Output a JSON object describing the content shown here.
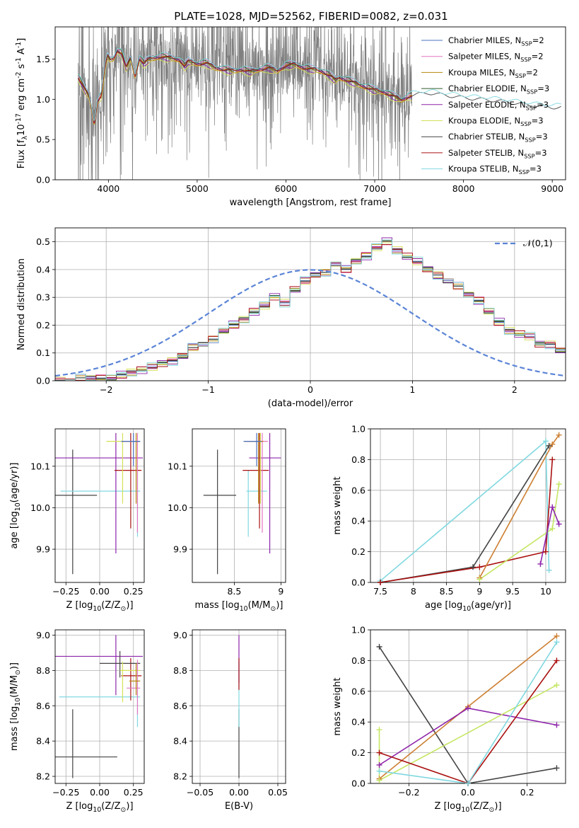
{
  "colors": {
    "Chabrier MILES": "#4a6fbf",
    "Salpeter MILES": "#e377c2",
    "Kroupa MILES": "#b8860b",
    "Chabrier ELODIE": "#2e5e2e",
    "Salpeter ELODIE": "#8e24aa",
    "Kroupa ELODIE": "#d4e157",
    "Chabrier STELIB": "#444444",
    "Salpeter STELIB": "#aa1111",
    "Kroupa STELIB": "#80d8e0",
    "data": "#7f7f7f",
    "normal": "#5b84d6",
    "peru": "#cd7f32",
    "lime": "#c5e663",
    "grid": "#b0b0b0"
  },
  "chart_data": [
    {
      "id": "spectrum",
      "type": "line",
      "title": "PLATE=1028, MJD=52562, FIBERID=0082, z=0.031",
      "xlabel": "wavelength [Angstrom, rest frame]",
      "ylabel": "Flux [f$_\\lambda$10$^{-17}$ erg cm$^{-2}$ s$^{-1}$ A$^{-1}$]",
      "xlim": [
        3400,
        9150
      ],
      "ylim": [
        0,
        1.9
      ],
      "xticks": [
        4000,
        5000,
        6000,
        7000,
        8000,
        9000
      ],
      "yticks": [
        0.0,
        0.5,
        1.0,
        1.5
      ],
      "grid": false,
      "legend_position": "top-right",
      "legend": [
        {
          "label": "Chabrier MILES, N$_{SSP}$=2",
          "color_key": "Chabrier MILES"
        },
        {
          "label": "Salpeter MILES, N$_{SSP}$=2",
          "color_key": "Salpeter MILES"
        },
        {
          "label": "Kroupa MILES, N$_{SSP}$=2",
          "color_key": "Kroupa MILES"
        },
        {
          "label": "Chabrier ELODIE, N$_{SSP}$=3",
          "color_key": "Chabrier ELODIE"
        },
        {
          "label": "Salpeter ELODIE, N$_{SSP}$=3",
          "color_key": "Salpeter ELODIE"
        },
        {
          "label": "Kroupa ELODIE, N$_{SSP}$=3",
          "color_key": "Kroupa ELODIE"
        },
        {
          "label": "Chabrier STELIB, N$_{SSP}$=3",
          "color_key": "Chabrier STELIB"
        },
        {
          "label": "Salpeter STELIB, N$_{SSP}$=3",
          "color_key": "Salpeter STELIB"
        },
        {
          "label": "Kroupa STELIB, N$_{SSP}$=3",
          "color_key": "Kroupa STELIB"
        }
      ],
      "model_continuum": {
        "x": [
          3660,
          3700,
          3740,
          3780,
          3810,
          3840,
          3880,
          3920,
          3960,
          3990,
          4020,
          4060,
          4100,
          4150,
          4200,
          4250,
          4300,
          4350,
          4400,
          4450,
          4500,
          4600,
          4700,
          4800,
          4860,
          4900,
          5000,
          5100,
          5200,
          5300,
          5400,
          5500,
          5600,
          5700,
          5800,
          5900,
          6000,
          6100,
          6200,
          6300,
          6400,
          6500,
          6560,
          6600,
          6700,
          6800,
          6900,
          7000,
          7100,
          7200,
          7300,
          7400,
          7600,
          7800,
          8000,
          8200,
          8400,
          8600,
          8800,
          9000,
          9150
        ],
        "y": [
          1.28,
          1.2,
          1.12,
          1.05,
          0.9,
          0.7,
          1.0,
          1.05,
          1.4,
          1.55,
          1.5,
          1.52,
          1.62,
          1.58,
          1.4,
          1.52,
          1.3,
          1.52,
          1.45,
          1.5,
          1.52,
          1.54,
          1.52,
          1.5,
          1.42,
          1.48,
          1.45,
          1.46,
          1.4,
          1.38,
          1.36,
          1.38,
          1.35,
          1.38,
          1.4,
          1.36,
          1.43,
          1.44,
          1.4,
          1.38,
          1.36,
          1.3,
          1.24,
          1.28,
          1.24,
          1.2,
          1.16,
          1.12,
          1.1,
          1.05,
          1.0,
          1.05,
          1.08,
          1.05,
          1.02,
          1.0,
          0.98,
          0.95,
          0.92,
          0.9,
          0.9
        ]
      },
      "data_range": [
        3660,
        7420
      ],
      "model_offsets": [
        0.0,
        0.02,
        -0.02,
        0.01,
        -0.03,
        -0.05,
        0.0,
        -0.01,
        0.03
      ],
      "model_ranges": [
        [
          3660,
          7420
        ],
        [
          3660,
          7420
        ],
        [
          3660,
          7420
        ],
        [
          3660,
          7420
        ],
        [
          3660,
          7420
        ],
        [
          3660,
          7420
        ],
        [
          3660,
          9100
        ],
        [
          3660,
          7420
        ],
        [
          3660,
          9100
        ]
      ]
    },
    {
      "id": "residuals",
      "type": "line",
      "xlabel": "(data-model)/error",
      "ylabel": "Normed distribution",
      "xlim": [
        -2.5,
        2.5
      ],
      "ylim": [
        0,
        0.55
      ],
      "xticks": [
        -2,
        -1,
        0,
        1,
        2
      ],
      "yticks": [
        0.0,
        0.1,
        0.2,
        0.3,
        0.4,
        0.5
      ],
      "grid": true,
      "legend_position": "top-right",
      "legend": [
        {
          "label": "$\\mathcal{N}(0,1)$",
          "style": "dashed"
        }
      ],
      "bin_width": 0.1,
      "bin_start": -2.5,
      "base_values": [
        0.0,
        0.0,
        0.01,
        0.01,
        0.01,
        0.01,
        0.02,
        0.03,
        0.04,
        0.05,
        0.06,
        0.07,
        0.09,
        0.12,
        0.13,
        0.15,
        0.18,
        0.2,
        0.22,
        0.25,
        0.27,
        0.3,
        0.28,
        0.33,
        0.36,
        0.38,
        0.39,
        0.42,
        0.4,
        0.43,
        0.45,
        0.48,
        0.5,
        0.47,
        0.45,
        0.43,
        0.4,
        0.38,
        0.36,
        0.34,
        0.31,
        0.29,
        0.25,
        0.21,
        0.18,
        0.17,
        0.16,
        0.13,
        0.13,
        0.11,
        0.12,
        0.1,
        0.08,
        0.09,
        0.08,
        0.06,
        0.05,
        0.05,
        0.04,
        0.03
      ],
      "series_jitter": [
        0.0,
        0.012,
        -0.01,
        0.008,
        0.015,
        -0.013,
        -0.006,
        0.01,
        -0.015
      ]
    },
    {
      "id": "z-age",
      "type": "scatter",
      "xlabel": "Z [log$_{10}$(Z/Z$_\\odot$)]",
      "ylabel": "age  [log$_{10}$(age/yr)]",
      "xlim": [
        -0.33,
        0.33
      ],
      "ylim": [
        9.82,
        10.19
      ],
      "xticks": [
        -0.25,
        0.0,
        0.25
      ],
      "xticklabels": [
        "−0.25",
        "0.00",
        "0.25"
      ],
      "yticks": [
        9.9,
        10.0,
        10.1
      ],
      "grid": true,
      "points": [
        {
          "color_key": "Chabrier STELIB",
          "x": -0.2,
          "xerr": [
            0.27,
            0.18
          ],
          "y": 10.03,
          "yerr": [
            0.19,
            0.11
          ]
        },
        {
          "color_key": "Kroupa STELIB",
          "x": 0.28,
          "xerr": [
            0.57,
            0.02
          ],
          "y": 10.04,
          "yerr": [
            0.11,
            0.05
          ]
        },
        {
          "color_key": "Salpeter ELODIE",
          "x": 0.12,
          "xerr": [
            0.45,
            0.2
          ],
          "y": 10.12,
          "yerr": [
            0.23,
            0.06
          ]
        },
        {
          "color_key": "Salpeter STELIB",
          "x": 0.23,
          "xerr": [
            0.12,
            0.08
          ],
          "y": 10.09,
          "yerr": [
            0.14,
            0.09
          ]
        },
        {
          "color_key": "Kroupa ELODIE",
          "x": 0.17,
          "xerr": [
            0.12,
            0.12
          ],
          "y": 10.16,
          "yerr": [
            0.15,
            0.02
          ]
        },
        {
          "color_key": "Salpeter MILES",
          "x": 0.28,
          "xerr": [
            0.12,
            0.02
          ],
          "y": 10.16,
          "yerr": [
            0.22,
            0.02
          ]
        },
        {
          "color_key": "Kroupa MILES",
          "x": 0.27,
          "xerr": [
            0.1,
            0.03
          ],
          "y": 10.16,
          "yerr": [
            0.15,
            0.02
          ]
        },
        {
          "color_key": "Chabrier MILES",
          "x": 0.25,
          "xerr": [
            0.09,
            0.05
          ],
          "y": 10.16,
          "yerr": [
            0.06,
            0.02
          ]
        }
      ]
    },
    {
      "id": "mass-age",
      "type": "scatter",
      "xlabel": "mass [log$_{10}$(M/M$_\\odot$)]",
      "xlim": [
        8.05,
        9.05
      ],
      "ylim": [
        9.82,
        10.19
      ],
      "xticks": [
        8.5,
        9.0
      ],
      "yticks": [
        9.9,
        10.0,
        10.1
      ],
      "grid": true,
      "points": [
        {
          "color_key": "Chabrier STELIB",
          "x": 8.32,
          "xerr": [
            0.15,
            0.2
          ],
          "y": 10.03,
          "yerr": [
            0.19,
            0.11
          ]
        },
        {
          "color_key": "Kroupa STELIB",
          "x": 8.65,
          "xerr": [
            0.02,
            0.2
          ],
          "y": 10.04,
          "yerr": [
            0.11,
            0.05
          ]
        },
        {
          "color_key": "Salpeter ELODIE",
          "x": 8.88,
          "xerr": [
            0.22,
            0.12
          ],
          "y": 10.12,
          "yerr": [
            0.23,
            0.06
          ]
        },
        {
          "color_key": "Salpeter STELIB",
          "x": 8.77,
          "xerr": [
            0.18,
            0.1
          ],
          "y": 10.09,
          "yerr": [
            0.14,
            0.09
          ]
        },
        {
          "color_key": "Kroupa ELODIE",
          "x": 8.78,
          "xerr": [
            0.18,
            0.04
          ],
          "y": 10.16,
          "yerr": [
            0.15,
            0.02
          ]
        },
        {
          "color_key": "Salpeter MILES",
          "x": 8.8,
          "xerr": [
            0.17,
            0.06
          ],
          "y": 10.16,
          "yerr": [
            0.22,
            0.02
          ]
        },
        {
          "color_key": "Kroupa MILES",
          "x": 8.76,
          "xerr": [
            0.15,
            0.05
          ],
          "y": 10.16,
          "yerr": [
            0.15,
            0.02
          ]
        },
        {
          "color_key": "Chabrier MILES",
          "x": 8.74,
          "xerr": [
            0.14,
            0.05
          ],
          "y": 10.16,
          "yerr": [
            0.06,
            0.02
          ]
        }
      ]
    },
    {
      "id": "age-weight",
      "type": "line",
      "xlabel": "age  [log$_{10}$(age/yr)]",
      "ylabel": "mass weight",
      "xlim": [
        7.35,
        10.3
      ],
      "ylim": [
        0,
        1.0
      ],
      "xticks": [
        7.5,
        8.0,
        8.5,
        9.0,
        9.5,
        10.0
      ],
      "yticks": [
        0.0,
        0.2,
        0.4,
        0.6,
        0.8,
        1.0
      ],
      "grid": true,
      "series": [
        {
          "color_key": "Kroupa STELIB",
          "x": [
            7.5,
            10.0,
            10.05
          ],
          "y": [
            0.01,
            0.92,
            0.08
          ]
        },
        {
          "color_key": "Chabrier STELIB",
          "x": [
            7.5,
            8.9,
            10.05
          ],
          "y": [
            0.0,
            0.1,
            0.89
          ]
        },
        {
          "color_key": "Salpeter STELIB",
          "x": [
            7.5,
            9.0,
            10.0,
            10.1
          ],
          "y": [
            0.0,
            0.1,
            0.2,
            0.8
          ]
        },
        {
          "color_key": "peru",
          "x": [
            9.0,
            10.1,
            10.2
          ],
          "y": [
            0.03,
            0.9,
            0.96
          ]
        },
        {
          "color_key": "lime",
          "x": [
            9.0,
            10.1,
            10.2
          ],
          "y": [
            0.02,
            0.35,
            0.64
          ]
        },
        {
          "color_key": "Salpeter ELODIE",
          "x": [
            9.92,
            10.1,
            10.2
          ],
          "y": [
            0.12,
            0.49,
            0.38
          ]
        }
      ]
    },
    {
      "id": "z-mass",
      "type": "scatter",
      "xlabel": "Z [log$_{10}$(Z/Z$_\\odot$)]",
      "ylabel": "mass [log$_{10}$(M/M$_\\odot$)]",
      "xlim": [
        -0.33,
        0.33
      ],
      "ylim": [
        8.16,
        9.03
      ],
      "xticks": [
        -0.25,
        0.0,
        0.25
      ],
      "xticklabels": [
        "−0.25",
        "0.00",
        "0.25"
      ],
      "yticks": [
        8.2,
        8.4,
        8.6,
        8.8,
        9.0
      ],
      "grid": true,
      "points": [
        {
          "color_key": "Chabrier STELIB",
          "x": -0.2,
          "xerr": [
            0.27,
            0.33
          ],
          "y": 8.31,
          "yerr": [
            0.12,
            0.27
          ]
        },
        {
          "color_key": "Kroupa STELIB",
          "x": 0.28,
          "xerr": [
            0.58,
            0.02
          ],
          "y": 8.65,
          "yerr": [
            0.17,
            0.2
          ]
        },
        {
          "color_key": "Salpeter ELODIE",
          "x": 0.12,
          "xerr": [
            0.45,
            0.2
          ],
          "y": 8.88,
          "yerr": [
            0.22,
            0.12
          ]
        },
        {
          "color_key": "Salpeter STELIB",
          "x": 0.23,
          "xerr": [
            0.07,
            0.08
          ],
          "y": 8.77,
          "yerr": [
            0.14,
            0.1
          ]
        },
        {
          "color_key": "Chabrier STELIB",
          "x": 0.15,
          "xerr": [
            0.15,
            0.15
          ],
          "y": 8.84,
          "yerr": [
            0.08,
            0.07
          ]
        },
        {
          "color_key": "Kroupa ELODIE",
          "x": 0.17,
          "xerr": [
            0.02,
            0.13
          ],
          "y": 8.8,
          "yerr": [
            0.18,
            0.05
          ]
        },
        {
          "color_key": "Salpeter MILES",
          "x": 0.28,
          "xerr": [
            0.08,
            0.02
          ],
          "y": 8.7,
          "yerr": [
            0.15,
            0.16
          ]
        },
        {
          "color_key": "Kroupa MILES",
          "x": 0.27,
          "xerr": [
            0.05,
            0.03
          ],
          "y": 8.74,
          "yerr": [
            0.08,
            0.1
          ]
        }
      ]
    },
    {
      "id": "ebv-mass",
      "type": "scatter",
      "xlabel": "E(B-V)",
      "xlim": [
        -0.06,
        0.06
      ],
      "ylim": [
        8.16,
        9.03
      ],
      "xticks": [
        -0.05,
        0.0,
        0.05
      ],
      "xticklabels": [
        "−0.05",
        "0.00",
        "0.05"
      ],
      "yticks": [
        8.2,
        8.4,
        8.6,
        8.8,
        9.0
      ],
      "grid": true,
      "points": [
        {
          "color_key": "Chabrier STELIB",
          "x": 0.0,
          "y": 8.31,
          "yerr": [
            0.12,
            0.27
          ]
        },
        {
          "color_key": "Kroupa STELIB",
          "x": 0.0,
          "y": 8.65,
          "yerr": [
            0.17,
            0.2
          ]
        },
        {
          "color_key": "Salpeter ELODIE",
          "x": 0.0,
          "y": 8.88,
          "yerr": [
            0.15,
            0.12
          ]
        },
        {
          "color_key": "Salpeter STELIB",
          "x": 0.0,
          "y": 8.77,
          "yerr": [
            0.08,
            0.1
          ]
        }
      ]
    },
    {
      "id": "z-weight",
      "type": "line",
      "xlabel": "Z [log$_{10}$(Z/Z$_\\odot$)]",
      "ylabel": "mass weight",
      "xlim": [
        -0.33,
        0.33
      ],
      "ylim": [
        0,
        1.0
      ],
      "xticks": [
        -0.2,
        0.0,
        0.2
      ],
      "xticklabels": [
        "−0.2",
        "0.0",
        "0.2"
      ],
      "yticks": [
        0.0,
        0.2,
        0.4,
        0.6,
        0.8,
        1.0
      ],
      "grid": true,
      "series": [
        {
          "color_key": "Chabrier STELIB",
          "x": [
            -0.3,
            0.0,
            0.3
          ],
          "y": [
            0.89,
            0.0,
            0.1
          ]
        },
        {
          "color_key": "peru",
          "x": [
            -0.3,
            0.0,
            0.3
          ],
          "y": [
            0.03,
            0.5,
            0.96
          ]
        },
        {
          "color_key": "Salpeter ELODIE",
          "x": [
            -0.3,
            0.0,
            0.3
          ],
          "y": [
            0.12,
            0.49,
            0.38
          ]
        },
        {
          "color_key": "lime",
          "x": [
            -0.3,
            -0.3,
            0.3
          ],
          "y": [
            0.35,
            0.02,
            0.64
          ]
        },
        {
          "color_key": "Salpeter STELIB",
          "x": [
            -0.3,
            0.0,
            0.3
          ],
          "y": [
            0.2,
            0.0,
            0.8
          ]
        },
        {
          "color_key": "Kroupa STELIB",
          "x": [
            -0.3,
            0.0,
            0.3
          ],
          "y": [
            0.08,
            0.0,
            0.92
          ]
        }
      ]
    }
  ]
}
